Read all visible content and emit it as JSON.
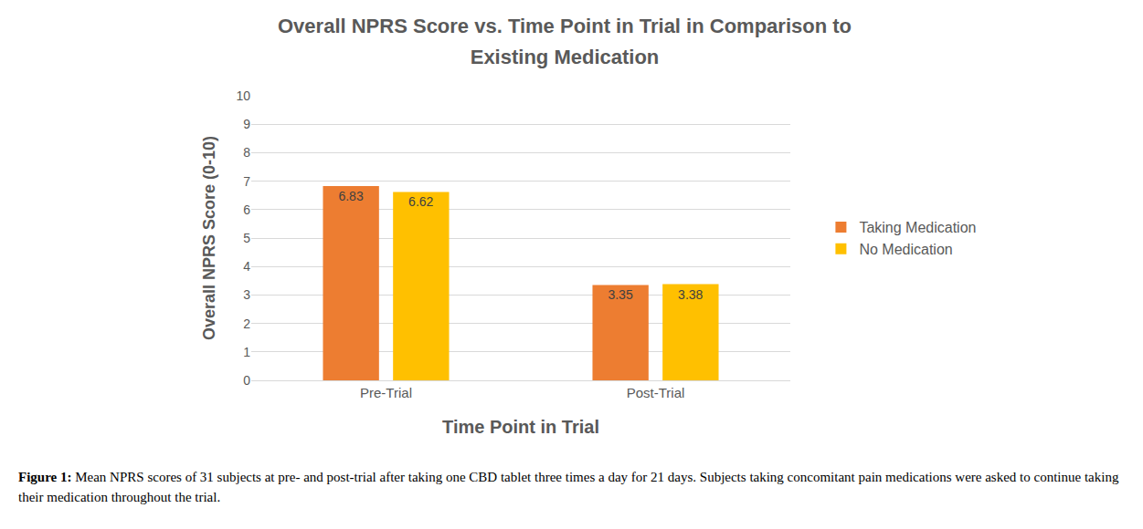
{
  "chart_data": {
    "type": "bar",
    "title": "Overall NPRS Score vs. Time Point in Trial in Comparison to Existing Medication",
    "x_label": "Time Point in Trial",
    "y_label": "Overall NPRS Score (0-10)",
    "categories": [
      "Pre-Trial",
      "Post-Trial"
    ],
    "series": [
      {
        "name": "Taking Medication",
        "color": "#ED7D31",
        "values": [
          6.83,
          3.35
        ]
      },
      {
        "name": "No Medication",
        "color": "#FFC000",
        "values": [
          6.62,
          3.38
        ]
      }
    ],
    "ylim": [
      0,
      10
    ],
    "yticks": [
      0,
      1,
      2,
      3,
      4,
      5,
      6,
      7,
      8,
      9,
      10
    ],
    "grid": true,
    "legend": "right",
    "data_labels": true,
    "caption": {
      "label": "Figure 1:",
      "text": "Mean NPRS scores of 31 subjects at pre- and post-trial after taking one CBD tablet three times a day for 21 days.  Subjects taking concomitant pain medications were asked to continue taking their medication throughout the trial."
    }
  }
}
